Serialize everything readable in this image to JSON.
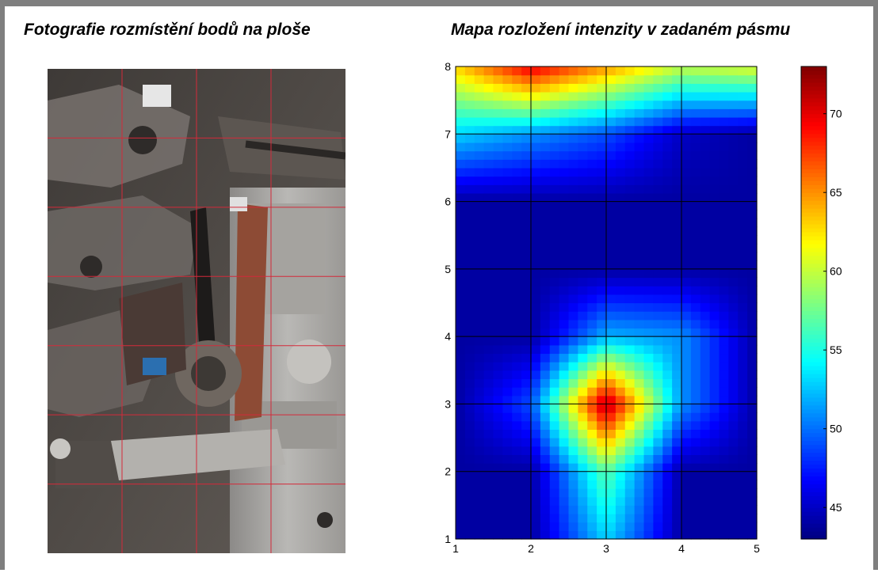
{
  "photo_title": "Fotografie rozmístění bodů na ploše",
  "map_title": "Mapa rozložení intenzity v zadaném pásmu",
  "photo_grid": {
    "columns": 4,
    "rows": 7,
    "line_color": "#d42a3a"
  },
  "chart_data": {
    "type": "heatmap",
    "title": "Mapa rozložení intenzity v zadaném pásmu",
    "xlabel": "",
    "ylabel": "",
    "xlim": [
      1,
      5
    ],
    "ylim": [
      1,
      8
    ],
    "xticks": [
      1,
      2,
      3,
      4,
      5
    ],
    "yticks": [
      1,
      2,
      3,
      4,
      5,
      6,
      7,
      8
    ],
    "grid": true,
    "colormap": "jet",
    "colorbar": {
      "min": 43,
      "max": 73,
      "ticks": [
        45,
        50,
        55,
        60,
        65,
        70
      ]
    },
    "values": [
      [
        44,
        44,
        53,
        44,
        44
      ],
      [
        44,
        44,
        57,
        44,
        44
      ],
      [
        44,
        49,
        72,
        51,
        44
      ],
      [
        44,
        44,
        52,
        51,
        44
      ],
      [
        44,
        44,
        44,
        44,
        44
      ],
      [
        44,
        44,
        44,
        44,
        44
      ],
      [
        53,
        51,
        49,
        45,
        44
      ],
      [
        63,
        70,
        65,
        60,
        61
      ]
    ]
  }
}
